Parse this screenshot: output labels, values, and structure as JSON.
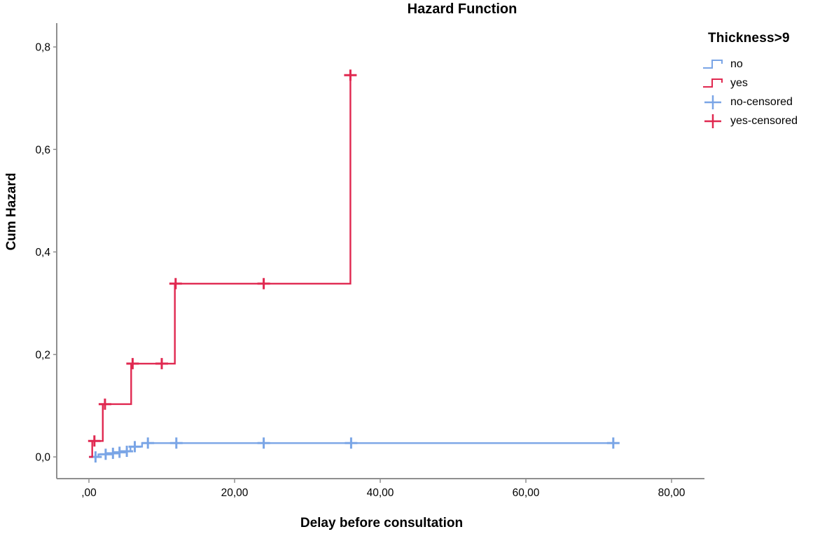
{
  "chart_data": {
    "type": "line",
    "subtype": "step-survival-hazard",
    "title": "Hazard Function",
    "xlabel": "Delay before consultation",
    "ylabel": "Cum Hazard",
    "xlim": [
      0,
      80
    ],
    "ylim": [
      0,
      0.8
    ],
    "grid": false,
    "legend_position": "right",
    "x_ticks": [
      {
        "value": 0,
        "label": ",00"
      },
      {
        "value": 20,
        "label": "20,00"
      },
      {
        "value": 40,
        "label": "40,00"
      },
      {
        "value": 60,
        "label": "60,00"
      },
      {
        "value": 80,
        "label": "80,00"
      }
    ],
    "y_ticks": [
      {
        "value": 0.0,
        "label": "0,0"
      },
      {
        "value": 0.2,
        "label": "0,2"
      },
      {
        "value": 0.4,
        "label": "0,4"
      },
      {
        "value": 0.6,
        "label": "0,6"
      },
      {
        "value": 0.8,
        "label": "0,8"
      }
    ],
    "legend": {
      "title": "Thickness>9",
      "items": [
        {
          "label": "no",
          "series": "no",
          "symbol": "step-line"
        },
        {
          "label": "yes",
          "series": "yes",
          "symbol": "step-line"
        },
        {
          "label": "no-censored",
          "series": "no",
          "symbol": "plus"
        },
        {
          "label": "yes-censored",
          "series": "yes",
          "symbol": "plus"
        }
      ]
    },
    "series": [
      {
        "name": "no",
        "color": "#7aa5e6",
        "step_points": [
          [
            0,
            0
          ],
          [
            1.3,
            0.005
          ],
          [
            2.9,
            0.007
          ],
          [
            3.8,
            0.009
          ],
          [
            4.8,
            0.011
          ],
          [
            5.7,
            0.02
          ],
          [
            7.3,
            0.027
          ],
          [
            72.2,
            0.027
          ]
        ],
        "censored_points": [
          [
            0.9,
            0.0
          ],
          [
            2.3,
            0.005
          ],
          [
            3.3,
            0.007
          ],
          [
            4.2,
            0.009
          ],
          [
            5.2,
            0.011
          ],
          [
            6.3,
            0.02
          ],
          [
            8.1,
            0.027
          ],
          [
            12,
            0.027
          ],
          [
            24,
            0.027
          ],
          [
            36,
            0.027
          ],
          [
            72,
            0.027
          ]
        ]
      },
      {
        "name": "yes",
        "color": "#e02850",
        "step_points": [
          [
            0,
            0
          ],
          [
            0.45,
            0.031
          ],
          [
            1.9,
            0.103
          ],
          [
            5.8,
            0.182
          ],
          [
            11.8,
            0.338
          ],
          [
            35.9,
            0.745
          ]
        ],
        "censored_points": [
          [
            0.75,
            0.031
          ],
          [
            2.2,
            0.103
          ],
          [
            6.0,
            0.182
          ],
          [
            10.0,
            0.182
          ],
          [
            11.9,
            0.338
          ],
          [
            24.0,
            0.338
          ],
          [
            35.9,
            0.745
          ]
        ]
      }
    ],
    "axis_color": "#8f8f8f"
  }
}
